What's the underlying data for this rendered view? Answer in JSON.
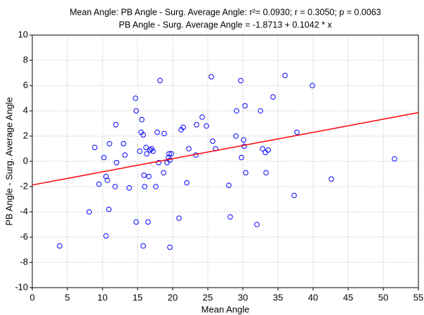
{
  "chart_data": {
    "type": "scatter",
    "title": "Mean Angle: PB Angle - Surg. Average Angle: r²= 0.0930; r = 0.3050; p = 0.0063",
    "subtitle": "PB Angle - Surg. Average Angle = -1.8713 + 0.1042 * x",
    "x_label": "Mean Angle",
    "y_label": "PB Angle - Surg. Average Angle",
    "xlim": [
      0,
      55
    ],
    "xticks": [
      0,
      5,
      10,
      15,
      20,
      25,
      30,
      35,
      40,
      45,
      50,
      55
    ],
    "ylim": [
      -10,
      10
    ],
    "yticks": [
      -10,
      -8,
      -6,
      -4,
      -2,
      0,
      2,
      4,
      6,
      8,
      10
    ],
    "grid": true,
    "color": "#0000ff",
    "regression": {
      "intercept": -1.8713,
      "slope": 0.1042,
      "color": "#ff0000"
    },
    "x": [
      3.9,
      8.1,
      8.9,
      9.5,
      10.2,
      10.5,
      10.7,
      10.9,
      10.5,
      11.0,
      11.8,
      11.9,
      12.0,
      13.0,
      13.2,
      13.8,
      14.7,
      14.8,
      14.8,
      15.3,
      15.5,
      15.6,
      15.8,
      15.9,
      15.8,
      16.0,
      16.2,
      16.3,
      16.5,
      16.6,
      16.8,
      17.0,
      17.2,
      17.6,
      17.8,
      18.0,
      18.2,
      18.7,
      18.8,
      19.2,
      19.4,
      19.5,
      19.6,
      19.6,
      19.8,
      20.9,
      21.2,
      21.5,
      22.0,
      22.3,
      23.3,
      23.4,
      24.2,
      24.8,
      25.5,
      25.7,
      26.1,
      28.0,
      28.2,
      29.0,
      29.1,
      29.7,
      29.8,
      30.1,
      30.3,
      30.2,
      30.4,
      32.0,
      32.5,
      32.8,
      33.2,
      33.3,
      33.6,
      34.3,
      36.0,
      37.3,
      37.7,
      39.9,
      42.6,
      51.6
    ],
    "values": [
      -6.7,
      -4.0,
      1.1,
      -1.8,
      0.3,
      -1.2,
      -1.5,
      -3.8,
      -5.9,
      1.4,
      -2.0,
      2.9,
      -0.1,
      1.4,
      0.5,
      -2.1,
      5.0,
      4.0,
      -4.8,
      0.8,
      2.3,
      3.3,
      2.1,
      -1.1,
      -6.7,
      -2.0,
      1.1,
      0.6,
      -4.8,
      -1.2,
      0.9,
      1.0,
      0.8,
      -2.0,
      2.3,
      -0.1,
      6.4,
      -0.9,
      2.2,
      -0.1,
      0.3,
      0.6,
      0.1,
      -6.8,
      0.6,
      -4.5,
      2.5,
      2.7,
      -1.7,
      1.0,
      0.5,
      2.9,
      3.5,
      2.8,
      6.7,
      1.6,
      1.0,
      -1.9,
      -4.4,
      2.0,
      4.0,
      6.4,
      0.3,
      1.7,
      4.4,
      1.2,
      -0.9,
      -5.0,
      4.0,
      1.0,
      0.7,
      -0.9,
      0.9,
      5.1,
      6.8,
      -2.7,
      2.3,
      6.0,
      -1.4,
      0.2
    ]
  }
}
